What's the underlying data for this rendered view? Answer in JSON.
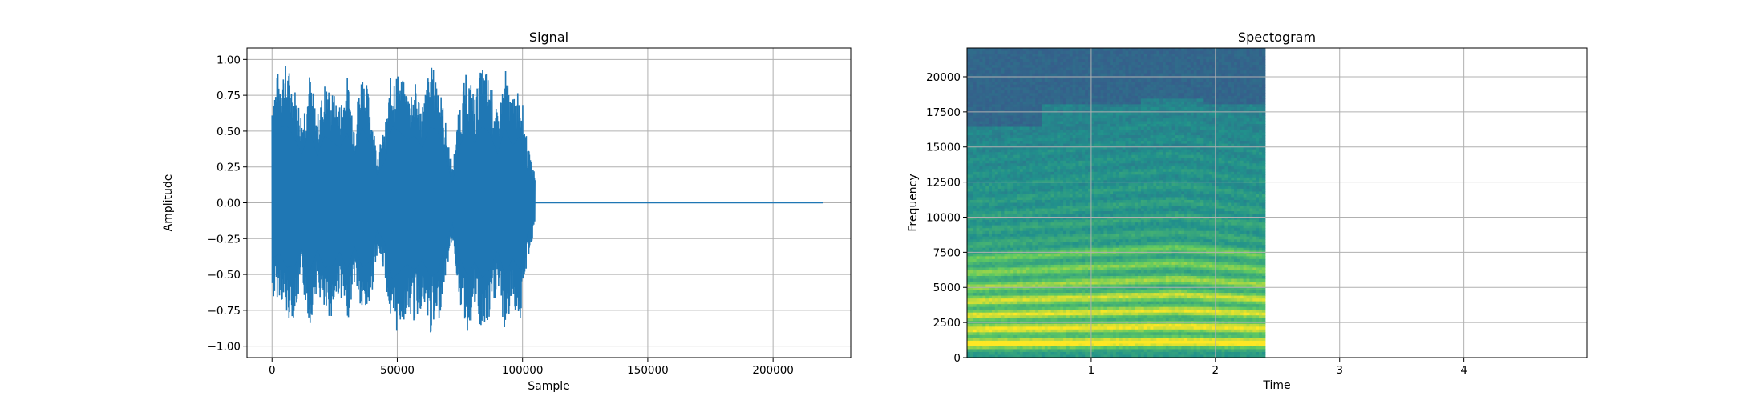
{
  "chart_data": [
    {
      "type": "line",
      "title": "Signal",
      "xlabel": "Sample",
      "ylabel": "Amplitude",
      "xlim": [
        -10000,
        231000
      ],
      "ylim": [
        -1.08,
        1.08
      ],
      "x_ticks": [
        0,
        50000,
        100000,
        150000,
        200000
      ],
      "x_tick_labels": [
        "0",
        "50000",
        "100000",
        "150000",
        "200000"
      ],
      "y_ticks": [
        -1.0,
        -0.75,
        -0.5,
        -0.25,
        0.0,
        0.25,
        0.5,
        0.75,
        1.0
      ],
      "y_tick_labels": [
        "−1.00",
        "−0.75",
        "−0.50",
        "−0.25",
        "0.00",
        "0.25",
        "0.50",
        "0.75",
        "1.00"
      ],
      "grid": true,
      "color": "#1f77b4",
      "series": [
        {
          "x": [
            0,
            3000,
            6000,
            9000,
            12000,
            15000,
            18000,
            21000,
            24000,
            27000,
            30000,
            33000,
            36000,
            39000,
            42000,
            45000,
            48000,
            51000,
            54000,
            57000,
            60000,
            63000,
            66000,
            69000,
            72000,
            75000,
            78000,
            81000,
            84000,
            87000,
            90000,
            93000,
            96000,
            99000,
            102000,
            105000
          ],
          "upper": [
            0.79,
            0.95,
            0.98,
            0.82,
            0.62,
            0.92,
            0.6,
            0.85,
            0.78,
            0.7,
            0.89,
            0.6,
            0.96,
            0.75,
            0.35,
            0.52,
            0.97,
            0.9,
            0.8,
            0.85,
            0.7,
            0.96,
            0.93,
            0.6,
            0.25,
            0.72,
            0.94,
            0.75,
            0.98,
            0.87,
            0.62,
            0.95,
            0.72,
            0.85,
            0.4,
            0.2
          ],
          "lower": [
            -0.7,
            -0.65,
            -0.82,
            -0.8,
            -0.58,
            -0.87,
            -0.6,
            -0.82,
            -0.8,
            -0.62,
            -0.85,
            -0.55,
            -0.82,
            -0.75,
            -0.35,
            -0.5,
            -0.97,
            -0.87,
            -0.78,
            -0.85,
            -0.72,
            -0.93,
            -0.9,
            -0.55,
            -0.25,
            -0.7,
            -0.92,
            -0.75,
            -0.95,
            -0.85,
            -0.6,
            -0.92,
            -0.7,
            -0.85,
            -0.4,
            -0.2
          ],
          "tail_x": [
            105000,
            220000
          ],
          "tail_y": [
            0,
            0
          ]
        }
      ]
    },
    {
      "type": "heatmap",
      "title": "Spectogram",
      "xlabel": "Time",
      "ylabel": "Frequency",
      "xlim": [
        0,
        4.99
      ],
      "ylim": [
        0,
        22050
      ],
      "x_ticks": [
        1,
        2,
        3,
        4
      ],
      "x_tick_labels": [
        "1",
        "2",
        "3",
        "4"
      ],
      "y_ticks": [
        0,
        2500,
        5000,
        7500,
        10000,
        12500,
        15000,
        17500,
        20000
      ],
      "y_tick_labels": [
        "0",
        "2500",
        "5000",
        "7500",
        "10000",
        "12500",
        "15000",
        "17500",
        "20000"
      ],
      "grid": true,
      "data_time_extent": [
        0,
        2.4
      ],
      "colormap": [
        "#440154",
        "#3b528b",
        "#21918c",
        "#5ec962",
        "#fde725"
      ],
      "harmonics": [
        {
          "freq": 1000,
          "level": 1.0
        },
        {
          "freq": 2000,
          "level": 0.85
        },
        {
          "freq": 3000,
          "level": 0.82
        },
        {
          "freq": 4000,
          "level": 0.78
        },
        {
          "freq": 5000,
          "level": 0.65
        },
        {
          "freq": 6000,
          "level": 0.58
        },
        {
          "freq": 7000,
          "level": 0.52
        }
      ]
    }
  ]
}
